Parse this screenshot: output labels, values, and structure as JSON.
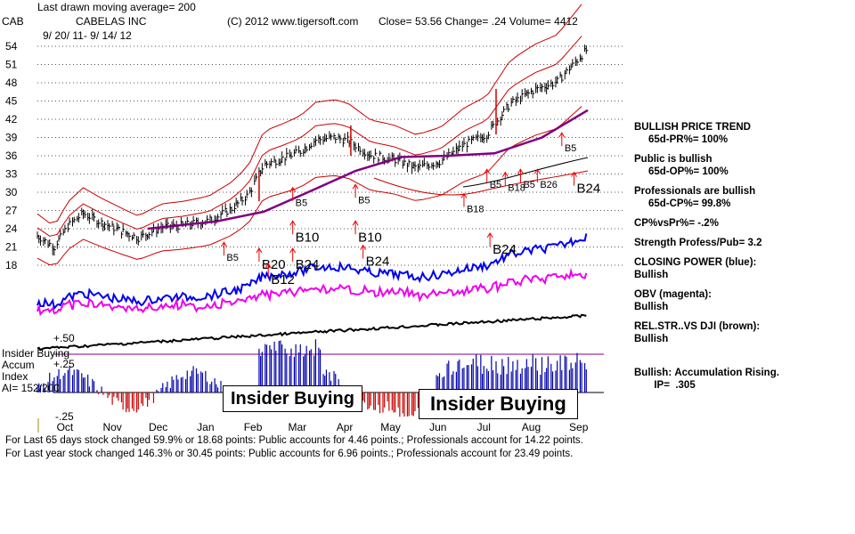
{
  "header": {
    "symbol": "CAB",
    "ma_note": "Last drawn moving average= 200",
    "company": "CABELAS INC",
    "copyright": "(C) 2012 www.tigersoft.com",
    "quote": "Close=  53.56  Change= .24 Volume= 4412",
    "date_range": "9/ 20/ 11- 9/ 14/ 12"
  },
  "panel": {
    "lines": [
      "BULLISH PRICE TREND",
      "     65d-PR%= 100%",
      "",
      "Public is bullish",
      "     65d-OP%= 100%",
      "",
      "Professionals are bullish",
      "     65d-CP%= 99.8%",
      "",
      "CP%vsPr%= -.2%",
      "",
      "Strength Profess/Pub= 3.2",
      "",
      "CLOSING POWER (blue):",
      "Bullish",
      "",
      "OBV (magenta):",
      "Bullish",
      "",
      "REL.STR..VS DJI (brown):",
      "Bullish",
      "",
      "",
      "",
      "Bullish: Accumulation Rising.",
      "       IP=  .305"
    ]
  },
  "accum_labels": {
    "title": "Insider Buying",
    "sub1": "Accum",
    "sub2": "Index",
    "ai": "AI= 152/200",
    "plus50": "+.50",
    "plus25": "+.25",
    "minus25": "-.25"
  },
  "boxes": [
    "Insider Buying",
    "Insider Buying"
  ],
  "footer": [
    "For Last 65 days stock changed  59.9% or  18.68 points:  Public accounts for  4.46 points.;  Professionals account for  14.22 points.",
    "For Last year stock changed  146.3% or  30.45 points:  Public accounts for  6.96 points.;  Professionals account for  23.49 points."
  ],
  "chart_data": {
    "type": "line",
    "y_ticks": [
      54,
      51,
      48,
      45,
      42,
      39,
      36,
      33,
      30,
      27,
      24,
      21,
      18
    ],
    "ylim": [
      16.5,
      55.5
    ],
    "months": [
      "Oct",
      "Nov",
      "Dec",
      "Jan",
      "Feb",
      "Mar",
      "Apr",
      "May",
      "Jun",
      "Jul",
      "Aug",
      "Sep"
    ],
    "price_close": [
      [
        "2011-09-20",
        22.8
      ],
      [
        "2011-10-01",
        21.0
      ],
      [
        "2011-10-10",
        24.5
      ],
      [
        "2011-10-20",
        26.5
      ],
      [
        "2011-11-01",
        25.0
      ],
      [
        "2011-11-15",
        23.5
      ],
      [
        "2011-11-25",
        22.5
      ],
      [
        "2011-12-10",
        24.2
      ],
      [
        "2011-12-25",
        24.6
      ],
      [
        "2012-01-10",
        25.3
      ],
      [
        "2012-01-25",
        27.3
      ],
      [
        "2012-02-05",
        29.6
      ],
      [
        "2012-02-15",
        34.5
      ],
      [
        "2012-03-01",
        35.8
      ],
      [
        "2012-03-10",
        36.7
      ],
      [
        "2012-03-20",
        38.6
      ],
      [
        "2012-04-01",
        39.0
      ],
      [
        "2012-04-10",
        38.5
      ],
      [
        "2012-04-25",
        36.1
      ],
      [
        "2012-05-10",
        35.4
      ],
      [
        "2012-05-25",
        34.0
      ],
      [
        "2012-06-10",
        35.1
      ],
      [
        "2012-06-25",
        37.8
      ],
      [
        "2012-07-10",
        39.5
      ],
      [
        "2012-07-25",
        44.5
      ],
      [
        "2012-08-10",
        46.8
      ],
      [
        "2012-08-25",
        48.2
      ],
      [
        "2012-09-14",
        53.6
      ]
    ],
    "ma200": [
      [
        "2011-12-01",
        24.0
      ],
      [
        "2012-01-15",
        25.2
      ],
      [
        "2012-02-15",
        26.8
      ],
      [
        "2012-03-15",
        30.0
      ],
      [
        "2012-04-15",
        33.5
      ],
      [
        "2012-05-15",
        35.8
      ],
      [
        "2012-06-15",
        36.0
      ],
      [
        "2012-07-15",
        36.4
      ],
      [
        "2012-08-15",
        39.0
      ],
      [
        "2012-09-14",
        43.5
      ]
    ],
    "signals": [
      {
        "label": "B5",
        "date": "2012-01-20",
        "y": 19
      },
      {
        "label": "B20",
        "date": "2012-02-12",
        "y": 18
      },
      {
        "label": "B12",
        "date": "2012-02-18",
        "y": 15.5
      },
      {
        "label": "B24",
        "date": "2012-03-05",
        "y": 18
      },
      {
        "label": "B10",
        "date": "2012-03-05",
        "y": 22.5
      },
      {
        "label": "B5",
        "date": "2012-03-05",
        "y": 28
      },
      {
        "label": "B24",
        "date": "2012-04-20",
        "y": 18.5
      },
      {
        "label": "B10",
        "date": "2012-04-15",
        "y": 22.5
      },
      {
        "label": "B5",
        "date": "2012-04-15",
        "y": 28.5
      },
      {
        "label": "B18",
        "date": "2012-06-25",
        "y": 27
      },
      {
        "label": "B24",
        "date": "2012-07-12",
        "y": 20.5
      },
      {
        "label": "B5",
        "date": "2012-07-10",
        "y": 31
      },
      {
        "label": "B18",
        "date": "2012-07-22",
        "y": 30.5
      },
      {
        "label": "B5",
        "date": "2012-08-01",
        "y": 31
      },
      {
        "label": "B26",
        "date": "2012-08-12",
        "y": 31
      },
      {
        "label": "B24",
        "date": "2012-09-05",
        "y": 30.5
      },
      {
        "label": "B5",
        "date": "2012-08-28",
        "y": 37
      }
    ],
    "colors": {
      "price": "#000000",
      "ma": "#800080",
      "bands": "#cc0000",
      "closing_power": "#0000ee",
      "obv": "#ee00ee",
      "rel_str": "#000000",
      "accum_pos": "#0000aa",
      "accum_neg": "#cc0000",
      "signal": "#ee0000"
    }
  }
}
